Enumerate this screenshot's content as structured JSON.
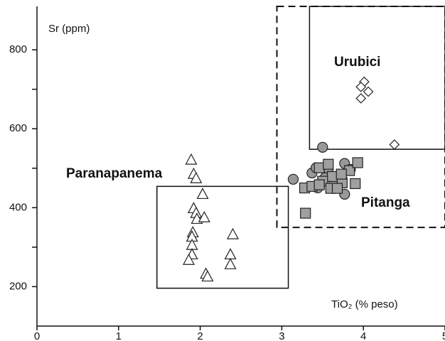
{
  "chart_data": {
    "type": "scatter",
    "y_label": "Sr  (ppm)",
    "x_label": "TiO₂  (% peso)",
    "xlim": [
      0,
      5
    ],
    "ylim": [
      100,
      910
    ],
    "xticks": [
      0,
      1,
      2,
      3,
      4,
      5
    ],
    "yticks": [
      200,
      400,
      600,
      800
    ],
    "minor_yticks": [
      300,
      500,
      700
    ],
    "series": [
      {
        "marker": "triangle",
        "color": "#ffffff",
        "x": [
          1.89,
          1.92,
          1.95,
          2.03,
          1.92,
          1.95,
          1.96,
          2.05,
          1.91,
          1.9,
          1.9,
          1.9,
          1.86,
          2.4,
          2.37,
          2.37,
          2.07,
          2.09
        ],
        "values": [
          521,
          485,
          474,
          434,
          398,
          386,
          371,
          375,
          337,
          326,
          305,
          281,
          267,
          332,
          281,
          256,
          232,
          225
        ]
      },
      {
        "marker": "diamond",
        "color": "#ffffff",
        "x": [
          4.01,
          3.97,
          4.06,
          3.97,
          4.38
        ],
        "values": [
          719,
          706,
          694,
          677,
          560
        ]
      },
      {
        "marker": "circle",
        "color": "#999999",
        "x": [
          3.5,
          3.14,
          3.37,
          3.44,
          3.77,
          3.84,
          3.77,
          3.64,
          3.53,
          3.57,
          3.42
        ],
        "values": [
          553,
          472,
          488,
          450,
          512,
          497,
          434,
          461,
          476,
          499,
          501
        ]
      },
      {
        "marker": "square",
        "color": "#a0a0a0",
        "x": [
          3.28,
          3.37,
          3.46,
          3.57,
          3.62,
          3.5,
          3.6,
          3.74,
          3.9,
          3.83,
          3.93,
          3.73,
          3.29,
          3.68,
          3.46
        ],
        "values": [
          450,
          454,
          501,
          510,
          479,
          467,
          449,
          463,
          461,
          494,
          514,
          485,
          386,
          449,
          458
        ]
      }
    ],
    "regions": [
      {
        "label": "Paranapanema",
        "x": [
          1.47,
          3.08
        ],
        "y": [
          196,
          454
        ],
        "dashed": false
      },
      {
        "label": "Urubici",
        "x": [
          3.34,
          5
        ],
        "y": [
          548,
          910
        ],
        "dashed": false
      },
      {
        "label": "Pitanga",
        "x": [
          2.94,
          5
        ],
        "y": [
          350,
          910
        ],
        "dashed": true
      }
    ]
  }
}
